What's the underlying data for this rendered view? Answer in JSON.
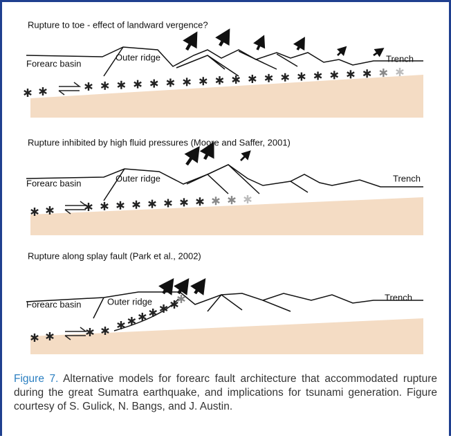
{
  "panels": [
    {
      "title": "Rupture to toe - effect of landward vergence?",
      "labels": [
        "Forearc basin",
        "Outer ridge",
        "Trench"
      ]
    },
    {
      "title": "Rupture inhibited by high fluid pressures (Moore and Saffer, 2001)",
      "labels": [
        "Forearc basin",
        "Outer ridge",
        "Trench"
      ]
    },
    {
      "title": "Rupture along splay fault (Park et al., 2002)",
      "labels": [
        "Forearc basin",
        "Outer ridge",
        "Trench"
      ]
    }
  ],
  "caption": {
    "label": "Figure 7.",
    "text": "Alternative models for forearc fault architecture that accommodated rupture during the great Sumatra earthquake, and implications for tsunami generation. Figure courtesy of S. Gulick, N. Bangs, and J. Austin."
  }
}
